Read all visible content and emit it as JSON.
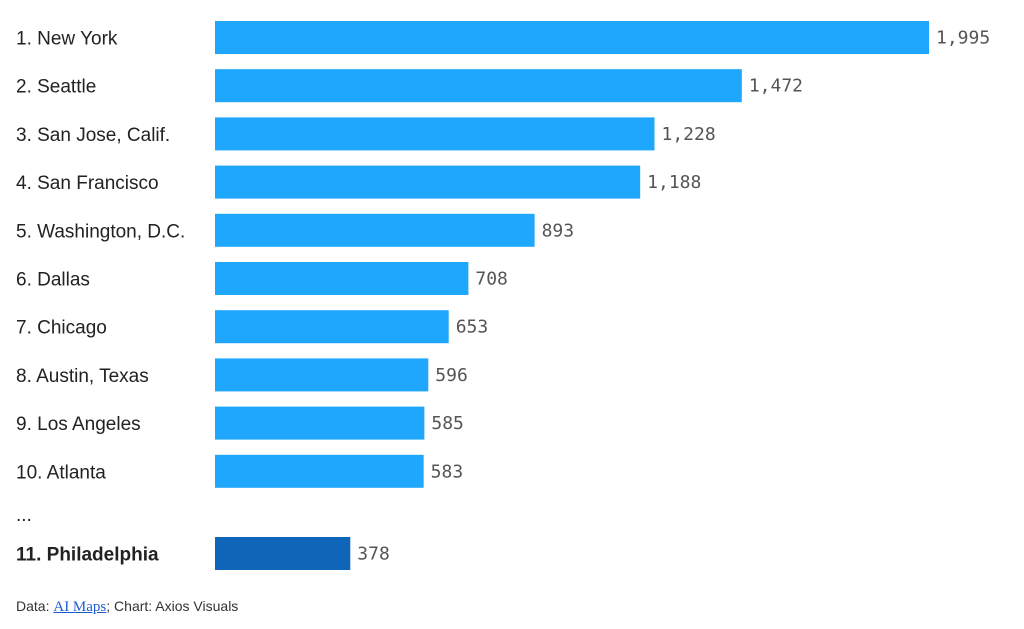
{
  "chart_data": {
    "type": "bar",
    "orientation": "horizontal",
    "categories": [
      "1. New York",
      "2. Seattle",
      "3. San Jose, Calif.",
      "4. San Francisco",
      "5. Washington, D.C.",
      "6. Dallas",
      "7. Chicago",
      "8. Austin, Texas",
      "9. Los Angeles",
      "10. Atlanta",
      "11. Philadelphia"
    ],
    "values": [
      1995,
      1472,
      1228,
      1188,
      893,
      708,
      653,
      596,
      585,
      583,
      378
    ],
    "value_labels": [
      "1,995",
      "1,472",
      "1,228",
      "1,188",
      "893",
      "708",
      "653",
      "596",
      "585",
      "583",
      "378"
    ],
    "highlight": "11. Philadelphia",
    "ellipsis_label": "...",
    "xlim": [
      0,
      1995
    ],
    "grid": false,
    "colors": {
      "bar": "#1ea7fd",
      "highlight_bar": "#0f65b7",
      "value_text": "#555555",
      "label_text": "#222222"
    }
  },
  "footer": {
    "prefix": "Data: ",
    "source_link": "AI Maps",
    "suffix": "; Chart: Axios Visuals"
  }
}
